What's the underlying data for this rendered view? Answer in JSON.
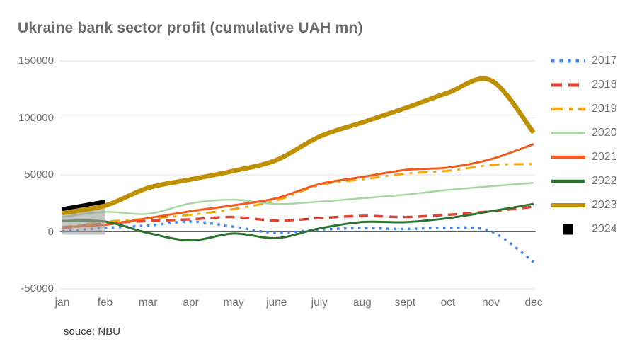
{
  "chart_data": {
    "type": "line",
    "title": "Ukraine bank sector profit (cumulative UAH mn)",
    "source": "souce: NBU",
    "legend_position": "right",
    "grid": true,
    "x_labels": [
      "jan",
      "feb",
      "mar",
      "apr",
      "may",
      "june",
      "july",
      "aug",
      "sept",
      "oct",
      "nov",
      "dec"
    ],
    "y_ticks": [
      150000,
      100000,
      50000,
      0,
      -50000
    ],
    "y_tick_labels": [
      "150000",
      "100000",
      "50000",
      "0",
      "-50000"
    ],
    "ylim": [
      -50000,
      150000
    ],
    "zero_line_color": "#616161",
    "grid_color": "#e3e3e3",
    "series": [
      {
        "name": "2017",
        "color": "#4285f4",
        "dash": "dotted",
        "width": 3.5,
        "values": [
          500,
          3500,
          5500,
          9000,
          4500,
          -1000,
          2000,
          3200,
          2500,
          3600,
          500,
          -26500
        ]
      },
      {
        "name": "2018",
        "color": "#db4437",
        "dash": "dashed",
        "width": 3.5,
        "values": [
          3000,
          7500,
          9500,
          11000,
          13000,
          9800,
          12000,
          14000,
          13000,
          15000,
          18000,
          22000
        ]
      },
      {
        "name": "2019",
        "color": "#f4a70a",
        "dash": "dashdot",
        "width": 3,
        "values": [
          4000,
          8800,
          11500,
          15000,
          20000,
          27500,
          41000,
          46000,
          51000,
          53500,
          58500,
          59600
        ]
      },
      {
        "name": "2020",
        "color": "#a8d5a2",
        "dash": "solid",
        "width": 2.5,
        "values": [
          13000,
          17500,
          15800,
          25000,
          28200,
          24400,
          26500,
          29500,
          32600,
          36800,
          40000,
          43000
        ]
      },
      {
        "name": "2021",
        "color": "#f4591e",
        "dash": "solid",
        "width": 3,
        "values": [
          4200,
          6200,
          12000,
          18100,
          23300,
          29500,
          41900,
          48100,
          54300,
          56400,
          63700,
          77000
        ]
      },
      {
        "name": "2022",
        "color": "#2d7330",
        "dash": "solid",
        "width": 3,
        "values": [
          9600,
          9000,
          -1000,
          -7500,
          -1500,
          -5500,
          3000,
          8600,
          8500,
          12000,
          18000,
          24500
        ]
      },
      {
        "name": "2023",
        "color": "#bf9102",
        "dash": "solid",
        "width": 6.5,
        "values": [
          16500,
          23000,
          38500,
          46000,
          53500,
          63000,
          83500,
          96000,
          108500,
          122000,
          133000,
          87000
        ]
      },
      {
        "name": "2024",
        "color": "#000000",
        "dash": "solid",
        "width": 5.5,
        "legend_marker": "square",
        "values": [
          20000,
          26500
        ]
      }
    ],
    "highlight_band": {
      "from_month": "jan",
      "to_month": "feb",
      "top_values": [
        20000,
        26500
      ],
      "bottom_value": -2500,
      "color": "#9e9e9e",
      "opacity": 0.6
    }
  }
}
